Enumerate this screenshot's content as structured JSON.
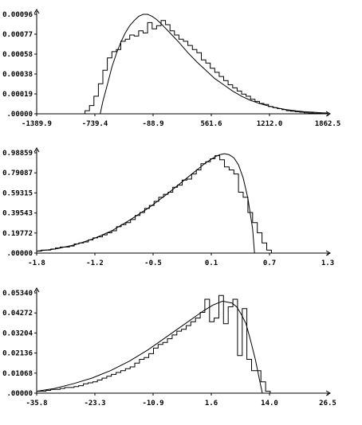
{
  "chart_data": [
    {
      "type": "line",
      "xlim": [
        -1389.9,
        1862.5
      ],
      "ylim": [
        0,
        0.00096
      ],
      "xticks": [
        "-1389.9",
        "-739.4",
        "-88.9",
        "561.6",
        "1212.0",
        "1862.5"
      ],
      "yticks": [
        ".00000",
        "0.00019",
        "0.00038",
        "0.00058",
        "0.00077",
        "0.00096"
      ],
      "series": [
        {
          "kind": "histogram",
          "x": [
            -850,
            -800,
            -750,
            -700,
            -650,
            -600,
            -550,
            -500,
            -450,
            -400,
            -350,
            -300,
            -250,
            -200,
            -150,
            -100,
            -50,
            0,
            50,
            100,
            150,
            200,
            250,
            300,
            350,
            400,
            450,
            500,
            550,
            600,
            650,
            700,
            750,
            800,
            850,
            900,
            950,
            1000,
            1050,
            1100,
            1150,
            1200,
            1250,
            1300,
            1350,
            1400,
            1450,
            1500,
            1550,
            1600,
            1650,
            1700,
            1750,
            1800
          ],
          "y": [
            3e-05,
            8e-05,
            0.00017,
            0.00029,
            0.00042,
            0.00054,
            0.0006,
            0.00062,
            0.0007,
            0.00072,
            0.00076,
            0.00075,
            0.0008,
            0.00078,
            0.00088,
            0.00082,
            0.00085,
            0.0009,
            0.00086,
            0.0008,
            0.00076,
            0.00072,
            0.0007,
            0.00066,
            0.00062,
            0.00059,
            0.00052,
            0.00049,
            0.00044,
            0.0004,
            0.00036,
            0.00032,
            0.00028,
            0.00025,
            0.00022,
            0.00019,
            0.00017,
            0.00014,
            0.00012,
            0.0001,
            9e-05,
            7e-05,
            6e-05,
            5e-05,
            4e-05,
            3e-05,
            2.5e-05,
            2e-05,
            1.5e-05,
            1e-05,
            8e-06,
            6e-06,
            4e-06,
            2e-06
          ]
        },
        {
          "kind": "curve",
          "x": [
            -680,
            -650,
            -600,
            -550,
            -500,
            -450,
            -400,
            -350,
            -300,
            -250,
            -200,
            -150,
            -100,
            -50,
            0,
            100,
            200,
            300,
            400,
            500,
            600,
            700,
            800,
            900,
            1000,
            1100,
            1200,
            1300,
            1400,
            1500,
            1600,
            1700,
            1800,
            1862.5
          ],
          "y": [
            0,
            0.00012,
            0.00028,
            0.00045,
            0.00058,
            0.00069,
            0.00078,
            0.00085,
            0.0009,
            0.00094,
            0.00096,
            0.00096,
            0.00094,
            0.00091,
            0.00087,
            0.00078,
            0.00069,
            0.00059,
            0.0005,
            0.00042,
            0.00034,
            0.00028,
            0.00022,
            0.00017,
            0.00013,
            0.0001,
            7.5e-05,
            5.5e-05,
            4e-05,
            3e-05,
            2e-05,
            1.5e-05,
            1e-05,
            8e-06
          ]
        }
      ]
    },
    {
      "type": "line",
      "xlim": [
        -1.8,
        1.3
      ],
      "ylim": [
        0,
        0.98859
      ],
      "xticks": [
        "-1.8",
        "-1.2",
        "-0.5",
        "0.1",
        "0.7",
        "1.3"
      ],
      "yticks": [
        ".00000",
        "0.19772",
        "0.39543",
        "0.59315",
        "0.79087",
        "0.98859"
      ],
      "series": [
        {
          "kind": "histogram",
          "x": [
            -1.8,
            -1.75,
            -1.7,
            -1.65,
            -1.6,
            -1.55,
            -1.5,
            -1.45,
            -1.4,
            -1.35,
            -1.3,
            -1.25,
            -1.2,
            -1.15,
            -1.1,
            -1.05,
            -1.0,
            -0.95,
            -0.9,
            -0.85,
            -0.8,
            -0.75,
            -0.7,
            -0.65,
            -0.6,
            -0.55,
            -0.5,
            -0.45,
            -0.4,
            -0.35,
            -0.3,
            -0.25,
            -0.2,
            -0.15,
            -0.1,
            -0.05,
            0.0,
            0.05,
            0.1,
            0.15,
            0.2,
            0.25,
            0.3,
            0.35,
            0.4,
            0.45,
            0.5,
            0.55,
            0.6,
            0.65
          ],
          "y": [
            0.02,
            0.03,
            0.03,
            0.04,
            0.05,
            0.06,
            0.06,
            0.07,
            0.09,
            0.1,
            0.11,
            0.13,
            0.15,
            0.16,
            0.18,
            0.2,
            0.22,
            0.26,
            0.28,
            0.3,
            0.33,
            0.37,
            0.4,
            0.44,
            0.47,
            0.51,
            0.55,
            0.58,
            0.6,
            0.65,
            0.67,
            0.72,
            0.73,
            0.78,
            0.82,
            0.88,
            0.9,
            0.93,
            0.96,
            0.92,
            0.85,
            0.82,
            0.78,
            0.6,
            0.55,
            0.4,
            0.3,
            0.2,
            0.1,
            0.03
          ]
        },
        {
          "kind": "curve",
          "x": [
            -1.8,
            -1.6,
            -1.4,
            -1.2,
            -1.0,
            -0.8,
            -0.6,
            -0.4,
            -0.2,
            0.0,
            0.1,
            0.15,
            0.2,
            0.25,
            0.3,
            0.35,
            0.4,
            0.45,
            0.5,
            0.52
          ],
          "y": [
            0.02,
            0.04,
            0.08,
            0.14,
            0.22,
            0.33,
            0.45,
            0.59,
            0.74,
            0.89,
            0.95,
            0.97,
            0.98,
            0.97,
            0.94,
            0.87,
            0.74,
            0.54,
            0.24,
            0.0
          ]
        }
      ]
    },
    {
      "type": "line",
      "xlim": [
        -35.8,
        26.5
      ],
      "ylim": [
        0,
        0.0534
      ],
      "xticks": [
        "-35.8",
        "-23.3",
        "-10.9",
        "1.6",
        "14.0",
        "26.5"
      ],
      "yticks": [
        ".00000",
        "0.01068",
        "0.02136",
        "0.03204",
        "0.04272",
        "0.05340"
      ],
      "series": [
        {
          "kind": "histogram",
          "x": [
            -35.8,
            -34.8,
            -33.8,
            -32.8,
            -31.8,
            -30.8,
            -29.8,
            -28.8,
            -27.8,
            -26.8,
            -25.8,
            -24.8,
            -23.8,
            -22.8,
            -21.8,
            -20.8,
            -19.8,
            -18.8,
            -17.8,
            -16.8,
            -15.8,
            -14.8,
            -13.8,
            -12.8,
            -11.8,
            -10.8,
            -9.8,
            -8.8,
            -7.8,
            -6.8,
            -5.8,
            -4.8,
            -3.8,
            -2.8,
            -1.8,
            -0.8,
            0.2,
            1.2,
            2.2,
            3.2,
            4.2,
            5.2,
            6.2,
            7.2,
            8.2,
            9.2,
            10.2,
            11.2,
            12.2,
            13.2
          ],
          "y": [
            0.001,
            0.001,
            0.0015,
            0.002,
            0.002,
            0.0025,
            0.003,
            0.003,
            0.0035,
            0.004,
            0.005,
            0.0055,
            0.006,
            0.007,
            0.008,
            0.009,
            0.01,
            0.011,
            0.012,
            0.013,
            0.014,
            0.016,
            0.018,
            0.019,
            0.021,
            0.024,
            0.026,
            0.027,
            0.029,
            0.031,
            0.033,
            0.034,
            0.036,
            0.038,
            0.04,
            0.043,
            0.05,
            0.038,
            0.04,
            0.052,
            0.037,
            0.046,
            0.05,
            0.02,
            0.045,
            0.018,
            0.012,
            0.012,
            0.006,
            0.001
          ]
        },
        {
          "kind": "curve",
          "x": [
            -35.8,
            -32,
            -28,
            -24,
            -20,
            -16,
            -12,
            -8,
            -4,
            0,
            2,
            4,
            6,
            7,
            8,
            9,
            10,
            11,
            12,
            12.5
          ],
          "y": [
            0.001,
            0.0025,
            0.005,
            0.008,
            0.012,
            0.017,
            0.023,
            0.03,
            0.037,
            0.044,
            0.047,
            0.049,
            0.048,
            0.046,
            0.042,
            0.037,
            0.028,
            0.018,
            0.006,
            0.0
          ]
        }
      ]
    }
  ]
}
